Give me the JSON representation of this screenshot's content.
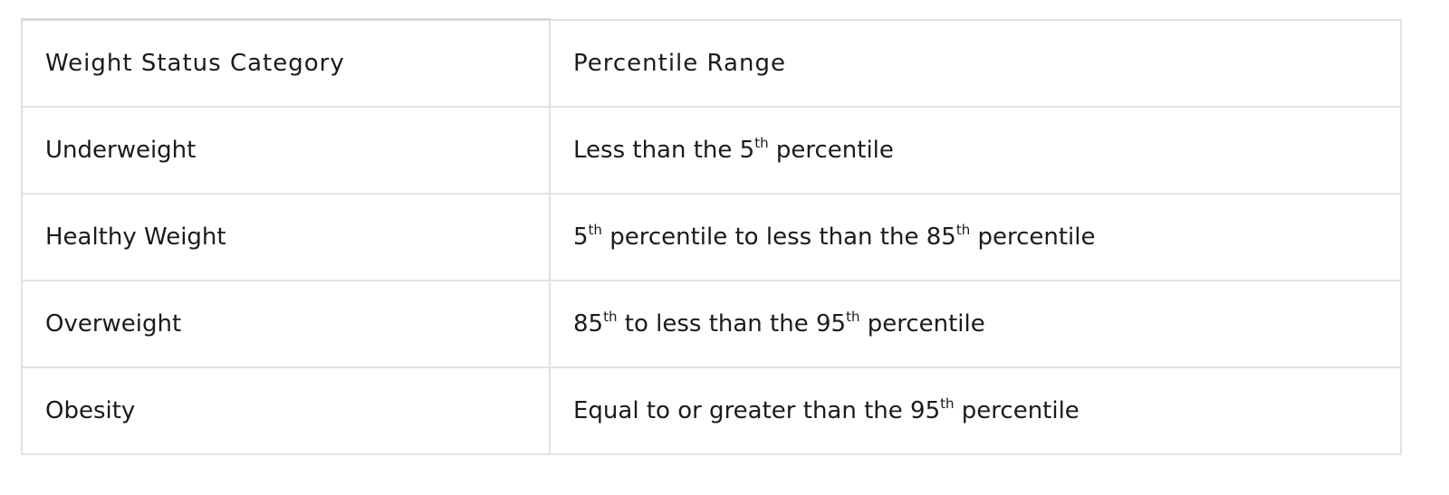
{
  "table": {
    "headers": [
      "Weight Status Category",
      "Percentile Range"
    ],
    "rows": [
      {
        "category": "Underweight",
        "range": [
          {
            "t": "Less than the 5"
          },
          {
            "sup": "th"
          },
          {
            "t": " percentile"
          }
        ]
      },
      {
        "category": "Healthy Weight",
        "range": [
          {
            "t": "5"
          },
          {
            "sup": "th"
          },
          {
            "t": " percentile to less than the 85"
          },
          {
            "sup": "th"
          },
          {
            "t": " percentile"
          }
        ]
      },
      {
        "category": "Overweight",
        "range": [
          {
            "t": "85"
          },
          {
            "sup": "th"
          },
          {
            "t": " to less than the 95"
          },
          {
            "sup": "th"
          },
          {
            "t": " percentile"
          }
        ]
      },
      {
        "category": "Obesity",
        "range": [
          {
            "t": "Equal to or greater than the 95"
          },
          {
            "sup": "th"
          },
          {
            "t": " percentile"
          }
        ]
      }
    ]
  }
}
